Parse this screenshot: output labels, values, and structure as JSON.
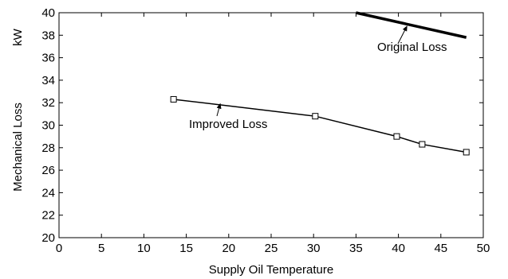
{
  "chart_data": {
    "type": "line",
    "xlabel": "Supply Oil Temperature",
    "ylabel": "Mechanical Loss",
    "ylabel_unit": "kW",
    "xlim": [
      0,
      50
    ],
    "ylim": [
      20,
      40
    ],
    "xticks": [
      "0",
      "5",
      "10",
      "15",
      "20",
      "25",
      "30",
      "35",
      "40",
      "45",
      "50"
    ],
    "yticks": [
      "20",
      "22",
      "24",
      "26",
      "28",
      "30",
      "32",
      "34",
      "36",
      "38",
      "40"
    ],
    "grid": false,
    "series": [
      {
        "name": "Original Loss",
        "x": [
          35,
          48
        ],
        "y": [
          40,
          37.8
        ],
        "marker": "none",
        "line_width": "thick",
        "color": "#000000"
      },
      {
        "name": "Improved Loss",
        "x": [
          13.5,
          30.2,
          39.8,
          42.8,
          48
        ],
        "y": [
          32.3,
          30.8,
          29.0,
          28.3,
          27.6
        ],
        "marker": "square",
        "line_width": "thin",
        "color": "#000000"
      }
    ],
    "annotations": [
      {
        "text": "Original Loss",
        "points_to": [
          41.0,
          38.8
        ]
      },
      {
        "text": "Improved Loss",
        "points_to": [
          19.0,
          31.9
        ]
      }
    ]
  }
}
